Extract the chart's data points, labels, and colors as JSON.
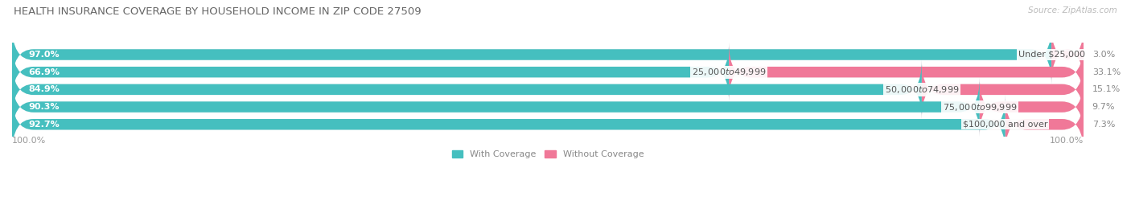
{
  "title": "HEALTH INSURANCE COVERAGE BY HOUSEHOLD INCOME IN ZIP CODE 27509",
  "source": "Source: ZipAtlas.com",
  "categories": [
    "Under $25,000",
    "$25,000 to $49,999",
    "$50,000 to $74,999",
    "$75,000 to $99,999",
    "$100,000 and over"
  ],
  "with_coverage": [
    97.0,
    66.9,
    84.9,
    90.3,
    92.7
  ],
  "without_coverage": [
    3.0,
    33.1,
    15.1,
    9.7,
    7.3
  ],
  "color_with": "#45bfbf",
  "color_without": "#f07898",
  "color_bg_bar": "#eeeeee",
  "bar_height": 0.62,
  "x_left_label": "100.0%",
  "x_right_label": "100.0%",
  "legend_with": "With Coverage",
  "legend_without": "Without Coverage",
  "title_fontsize": 9.5,
  "label_fontsize": 8,
  "pct_fontsize": 8,
  "source_fontsize": 7.5
}
